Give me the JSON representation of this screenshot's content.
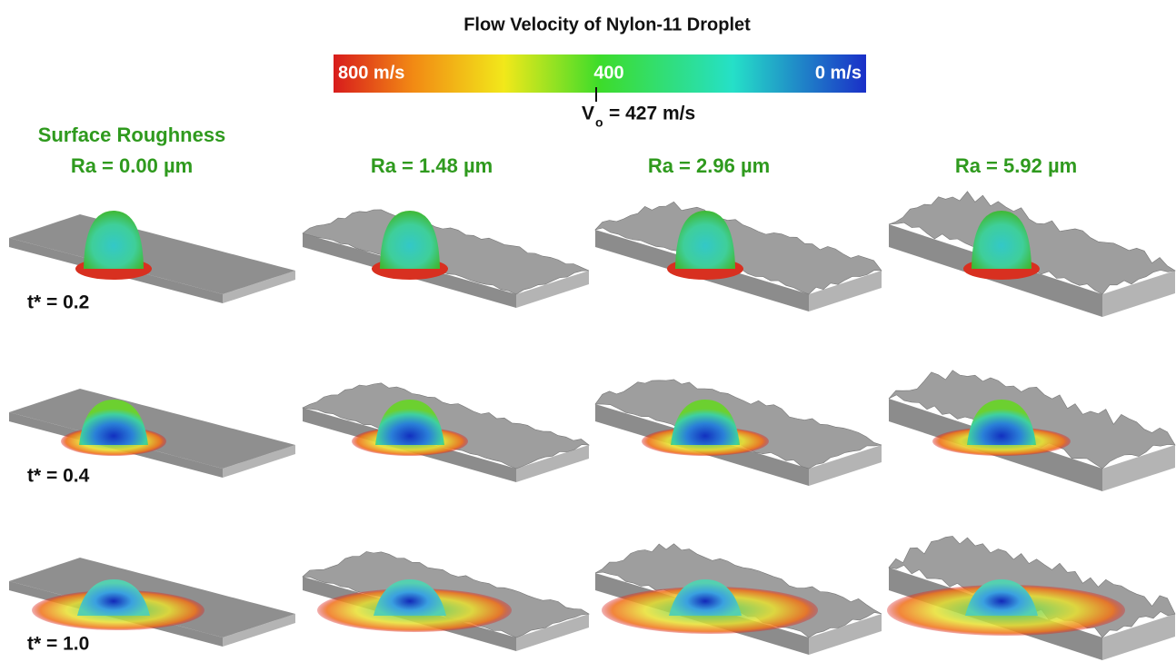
{
  "title": "Flow Velocity of Nylon-11 Droplet",
  "colorbar": {
    "left": "800 m/s",
    "middle": "400",
    "right": "0 m/s"
  },
  "impact_velocity": {
    "symbol": "V",
    "subscript": "o",
    "text": "= 427 m/s"
  },
  "columns": [
    {
      "heading": "Surface Roughness",
      "label": "Ra = 0.00 µm"
    },
    {
      "label": "Ra = 1.48 µm"
    },
    {
      "label": "Ra = 2.96 µm"
    },
    {
      "label": "Ra = 5.92 µm"
    }
  ],
  "rows": [
    "t* = 0.2",
    "t* = 0.4",
    "t* = 1.0"
  ]
}
